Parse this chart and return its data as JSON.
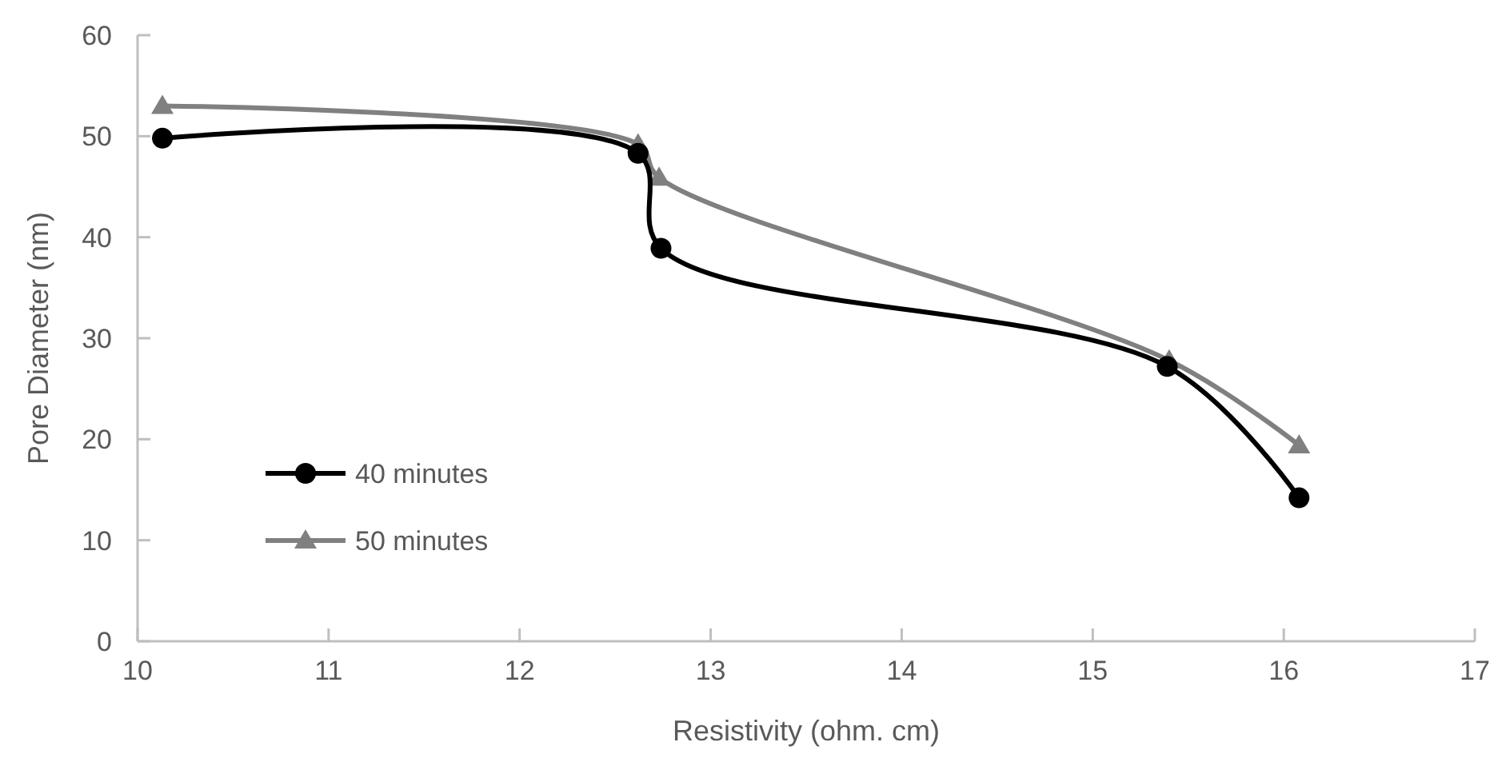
{
  "chart_data": {
    "type": "line",
    "xlabel": "Resistivity (ohm. cm)",
    "ylabel": "Pore Diameter (nm)",
    "xlim": [
      10,
      17
    ],
    "xticks": [
      10,
      11,
      12,
      13,
      14,
      15,
      16,
      17
    ],
    "ylim": [
      0,
      60
    ],
    "yticks": [
      0,
      10,
      20,
      30,
      40,
      50,
      60
    ],
    "grid": false,
    "legend": "bottom left",
    "line_style": "solid",
    "series": [
      {
        "name": "40 minutes",
        "color": "#000000",
        "marker": "circle",
        "x": [
          10.13,
          12.62,
          12.74,
          15.39,
          16.08
        ],
        "values": [
          49.8,
          48.3,
          38.9,
          27.2,
          14.2
        ]
      },
      {
        "name": "50 minutes",
        "color": "#808080",
        "marker": "triangle",
        "x": [
          10.13,
          12.62,
          12.73,
          15.4,
          16.08
        ],
        "values": [
          53.0,
          49.2,
          45.9,
          27.8,
          19.4
        ]
      }
    ]
  }
}
